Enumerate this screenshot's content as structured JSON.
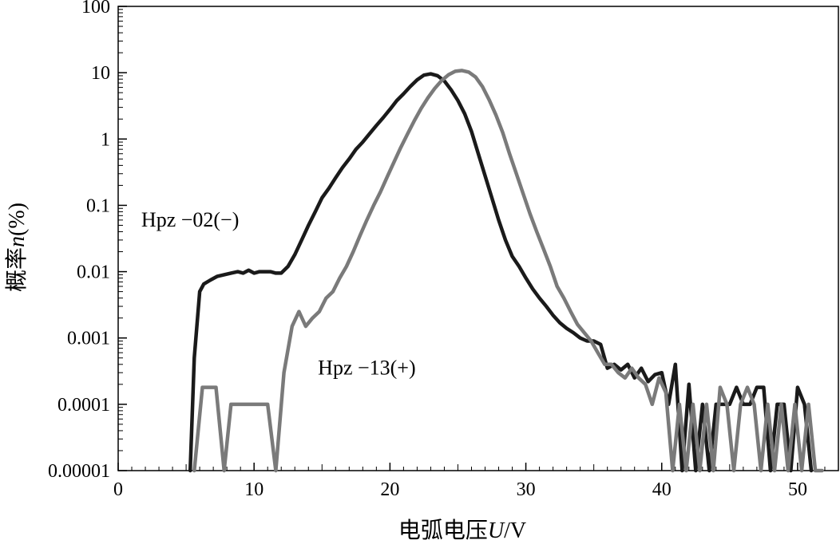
{
  "chart_data": {
    "type": "line",
    "title": "",
    "xlabel": "电弧电压",
    "xlabel_var": "U",
    "xlabel_unit": "/V",
    "ylabel": "概率",
    "ylabel_var": "n",
    "ylabel_unit": "(%)",
    "xlim": [
      0,
      53
    ],
    "ylim": [
      1e-05,
      100
    ],
    "yscale": "log",
    "x_ticks": [
      0,
      10,
      20,
      30,
      40,
      50
    ],
    "x_tick_labels": [
      "0",
      "10",
      "20",
      "30",
      "40",
      "50"
    ],
    "y_ticks": [
      1e-05,
      0.0001,
      0.001,
      0.01,
      0.1,
      1,
      10,
      100
    ],
    "y_tick_labels": [
      "0.00001",
      "0.0001",
      "0.001",
      "0.01",
      "0.1",
      "1",
      "10",
      "100"
    ],
    "grid": false,
    "legend": "none",
    "series": [
      {
        "name": "Hpz-02(−)",
        "color": "#1a1a1a",
        "x": [
          5.3,
          5.6,
          6.0,
          6.3,
          6.8,
          7.3,
          7.8,
          8.3,
          8.8,
          9.2,
          9.6,
          10.0,
          10.4,
          10.8,
          11.2,
          11.6,
          12.0,
          12.5,
          13.0,
          13.5,
          14.0,
          14.5,
          15.0,
          15.5,
          16.0,
          16.5,
          17.0,
          17.5,
          18.0,
          18.5,
          19.0,
          19.5,
          20.0,
          20.5,
          21.0,
          21.5,
          22.0,
          22.5,
          23.0,
          23.5,
          24.0,
          24.5,
          25.0,
          25.5,
          26.0,
          26.5,
          27.0,
          27.5,
          28.0,
          28.5,
          29.0,
          29.5,
          30.0,
          30.5,
          31.0,
          31.5,
          32.0,
          32.5,
          33.0,
          33.5,
          34.0,
          34.5,
          35.0,
          35.5,
          36.0,
          36.5,
          37.0,
          37.5,
          38.0,
          38.5,
          39.0,
          39.5,
          40.0,
          40.5,
          41.0,
          41.5,
          42.0,
          42.5,
          43.0,
          43.5,
          44.0,
          44.5,
          45.0,
          45.5,
          46.0,
          46.5,
          47.0,
          47.5,
          48.0,
          48.5,
          49.0,
          49.5,
          50.0,
          50.5,
          51.0
        ],
        "y": [
          1e-05,
          0.0005,
          0.005,
          0.0065,
          0.0075,
          0.0085,
          0.009,
          0.0095,
          0.01,
          0.0095,
          0.0105,
          0.0095,
          0.01,
          0.01,
          0.01,
          0.0095,
          0.0095,
          0.012,
          0.018,
          0.03,
          0.05,
          0.08,
          0.13,
          0.18,
          0.26,
          0.37,
          0.5,
          0.7,
          0.9,
          1.2,
          1.6,
          2.1,
          2.8,
          3.8,
          4.8,
          6.2,
          7.8,
          9.2,
          9.6,
          9.0,
          7.5,
          5.5,
          3.8,
          2.4,
          1.3,
          0.6,
          0.28,
          0.13,
          0.06,
          0.03,
          0.017,
          0.012,
          0.008,
          0.0055,
          0.004,
          0.003,
          0.0022,
          0.0017,
          0.0014,
          0.0012,
          0.001,
          0.0009,
          0.0009,
          0.0008,
          0.00035,
          0.0004,
          0.00033,
          0.0004,
          0.00025,
          0.00035,
          0.00022,
          0.00028,
          0.0003,
          0.0001,
          0.0004,
          1e-05,
          0.0002,
          1e-05,
          0.0001,
          1e-05,
          0.0001,
          0.0001,
          0.0001,
          0.00018,
          0.0001,
          0.0001,
          0.00018,
          0.00018,
          1e-05,
          0.0001,
          0.0001,
          1e-05,
          0.00018,
          0.0001,
          1e-05
        ]
      },
      {
        "name": "Hpz-13(+)",
        "color": "#7a7a7a",
        "x": [
          5.6,
          6.2,
          6.6,
          7.2,
          7.8,
          8.3,
          9.0,
          10.0,
          11.0,
          11.6,
          12.2,
          12.8,
          13.3,
          13.8,
          14.3,
          14.8,
          15.3,
          15.8,
          16.3,
          16.8,
          17.3,
          17.8,
          18.3,
          18.8,
          19.3,
          19.8,
          20.3,
          20.8,
          21.3,
          21.8,
          22.3,
          22.8,
          23.3,
          23.8,
          24.3,
          24.8,
          25.3,
          25.8,
          26.3,
          26.8,
          27.3,
          27.8,
          28.3,
          28.8,
          29.3,
          29.8,
          30.3,
          30.8,
          31.3,
          31.8,
          32.3,
          32.8,
          33.3,
          33.8,
          34.3,
          34.8,
          35.3,
          35.8,
          36.3,
          36.8,
          37.3,
          37.8,
          38.3,
          38.8,
          39.3,
          39.8,
          40.3,
          40.8,
          41.3,
          41.8,
          42.3,
          42.8,
          43.3,
          43.8,
          44.3,
          44.8,
          45.3,
          45.8,
          46.3,
          46.8,
          47.3,
          47.8,
          48.3,
          48.8,
          49.3,
          49.8,
          50.3,
          50.8,
          51.3,
          51.8
        ],
        "y": [
          1e-05,
          0.00018,
          0.00018,
          0.00018,
          1e-05,
          0.0001,
          0.0001,
          0.0001,
          0.0001,
          1e-05,
          0.0003,
          0.0015,
          0.0025,
          0.0015,
          0.002,
          0.0025,
          0.004,
          0.005,
          0.008,
          0.012,
          0.02,
          0.035,
          0.06,
          0.1,
          0.16,
          0.27,
          0.45,
          0.75,
          1.2,
          1.9,
          2.9,
          4.2,
          5.8,
          7.6,
          9.3,
          10.5,
          10.8,
          10.2,
          8.6,
          6.2,
          3.9,
          2.3,
          1.25,
          0.6,
          0.3,
          0.15,
          0.075,
          0.04,
          0.022,
          0.012,
          0.006,
          0.004,
          0.0025,
          0.0016,
          0.0012,
          0.0009,
          0.0006,
          0.0004,
          0.0004,
          0.0003,
          0.00025,
          0.00035,
          0.00025,
          0.0002,
          0.0001,
          0.00025,
          0.00015,
          1e-05,
          0.0001,
          1e-05,
          0.0001,
          1e-05,
          0.0001,
          1e-05,
          0.00018,
          0.0001,
          1e-05,
          0.0001,
          0.00018,
          0.0001,
          1e-05,
          0.0001,
          1e-05,
          0.0001,
          1e-05,
          0.0001,
          1e-05,
          0.0001,
          1e-05,
          1e-05
        ]
      }
    ],
    "annotations": [
      {
        "text": "Hpz −02(−)",
        "x": 1.7,
        "y": 0.048
      },
      {
        "text": "Hpz −13(+)",
        "x": 14.7,
        "y": 0.00028
      }
    ]
  }
}
